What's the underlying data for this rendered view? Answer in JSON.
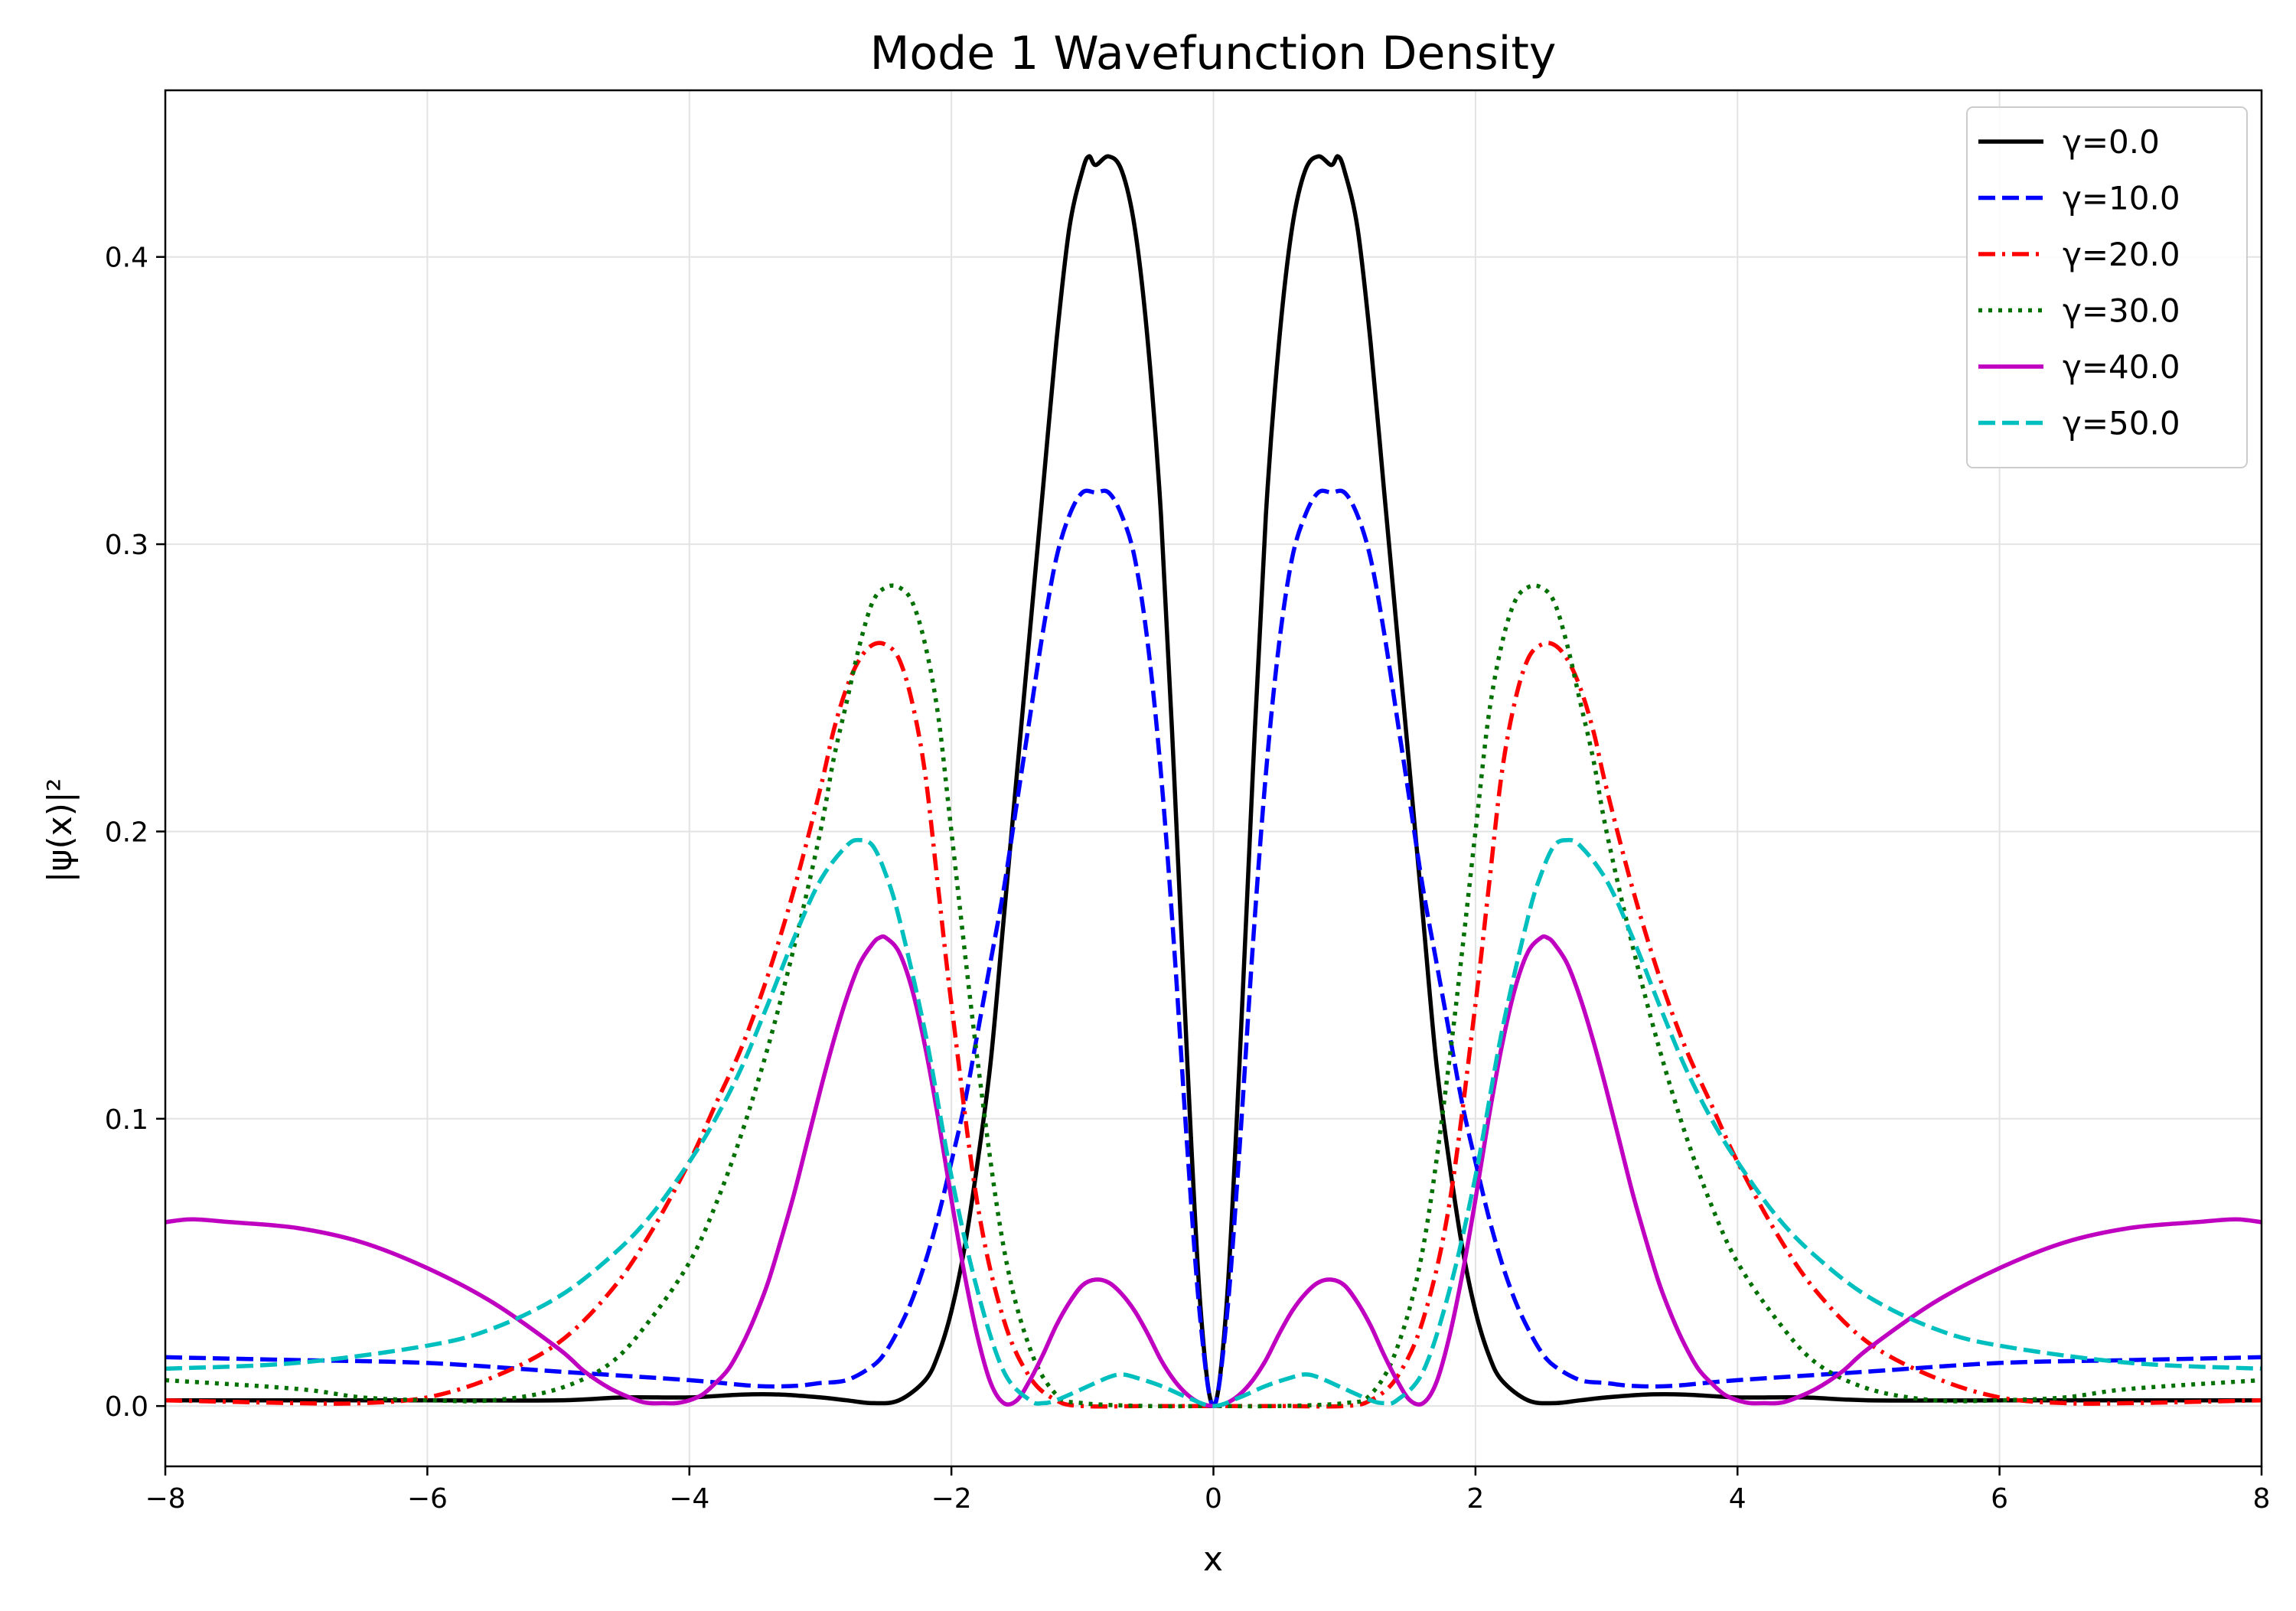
{
  "chart_data": {
    "type": "line",
    "title": "Mode 1 Wavefunction Density",
    "xlabel": "x",
    "ylabel": "|ψ(x)|²",
    "xlim": [
      -8,
      8
    ],
    "ylim": [
      -0.021,
      0.458
    ],
    "xticks": [
      -8,
      -6,
      -4,
      -2,
      0,
      2,
      4,
      6,
      8
    ],
    "xtick_labels": [
      "−8",
      "−6",
      "−4",
      "−2",
      "0",
      "2",
      "4",
      "6",
      "8"
    ],
    "yticks": [
      0.0,
      0.1,
      0.2,
      0.3,
      0.4
    ],
    "ytick_labels": [
      "0.0",
      "0.1",
      "0.2",
      "0.3",
      "0.4"
    ],
    "grid": true,
    "legend_position": "top-right",
    "symmetric_about_zero": true,
    "series": [
      {
        "name": "γ=0.0",
        "color": "#000000",
        "dash": "solid",
        "x": [
          0,
          0.1,
          0.2,
          0.3,
          0.4,
          0.5,
          0.6,
          0.7,
          0.8,
          0.9,
          0.95,
          1.0,
          1.1,
          1.2,
          1.3,
          1.4,
          1.5,
          1.6,
          1.7,
          1.8,
          1.9,
          2.0,
          2.1,
          2.2,
          2.4,
          2.6,
          2.8,
          3.0,
          3.3,
          3.6,
          4.0,
          4.5,
          5.0,
          6.0,
          7.0,
          8.0
        ],
        "y": [
          0,
          0.035,
          0.12,
          0.22,
          0.31,
          0.37,
          0.41,
          0.43,
          0.435,
          0.432,
          0.435,
          0.43,
          0.41,
          0.37,
          0.32,
          0.27,
          0.22,
          0.17,
          0.12,
          0.085,
          0.055,
          0.033,
          0.018,
          0.009,
          0.002,
          0.001,
          0.002,
          0.003,
          0.004,
          0.004,
          0.003,
          0.003,
          0.002,
          0.002,
          0.002,
          0.002
        ]
      },
      {
        "name": "γ=10.0",
        "color": "#0000ff",
        "dash": "dashed",
        "x": [
          0,
          0.1,
          0.2,
          0.3,
          0.4,
          0.5,
          0.6,
          0.7,
          0.8,
          0.9,
          1.0,
          1.1,
          1.2,
          1.3,
          1.4,
          1.5,
          1.6,
          1.7,
          1.8,
          1.9,
          2.0,
          2.1,
          2.2,
          2.3,
          2.4,
          2.5,
          2.6,
          2.8,
          3.0,
          3.2,
          3.5,
          4.0,
          5.0,
          6.0,
          7.0,
          8.0
        ],
        "y": [
          0,
          0.03,
          0.09,
          0.16,
          0.22,
          0.265,
          0.295,
          0.31,
          0.318,
          0.318,
          0.318,
          0.31,
          0.295,
          0.27,
          0.24,
          0.21,
          0.18,
          0.155,
          0.13,
          0.105,
          0.085,
          0.066,
          0.05,
          0.037,
          0.027,
          0.019,
          0.014,
          0.009,
          0.008,
          0.007,
          0.007,
          0.009,
          0.012,
          0.015,
          0.016,
          0.017
        ]
      },
      {
        "name": "γ=20.0",
        "color": "#ff0000",
        "dash": "dashdot",
        "x": [
          0,
          0.5,
          1.0,
          1.2,
          1.4,
          1.6,
          1.8,
          2.0,
          2.1,
          2.2,
          2.3,
          2.4,
          2.5,
          2.6,
          2.7,
          2.8,
          2.9,
          3.0,
          3.2,
          3.4,
          3.6,
          3.8,
          4.0,
          4.3,
          4.6,
          5.0,
          5.5,
          6.0,
          6.5,
          7.0,
          8.0
        ],
        "y": [
          0,
          0,
          0,
          0.002,
          0.01,
          0.03,
          0.07,
          0.14,
          0.18,
          0.22,
          0.245,
          0.26,
          0.265,
          0.265,
          0.26,
          0.25,
          0.235,
          0.215,
          0.18,
          0.15,
          0.125,
          0.105,
          0.085,
          0.06,
          0.04,
          0.022,
          0.01,
          0.003,
          0.001,
          0.001,
          0.002
        ]
      },
      {
        "name": "γ=30.0",
        "color": "#007000",
        "dash": "dotted",
        "x": [
          0,
          0.5,
          1.0,
          1.2,
          1.4,
          1.6,
          1.8,
          2.0,
          2.1,
          2.2,
          2.3,
          2.4,
          2.5,
          2.6,
          2.7,
          2.8,
          2.9,
          3.0,
          3.2,
          3.4,
          3.6,
          3.8,
          4.0,
          4.3,
          4.6,
          5.0,
          5.5,
          6.0,
          6.5,
          7.0,
          8.0
        ],
        "y": [
          0,
          0,
          0.001,
          0.004,
          0.02,
          0.055,
          0.12,
          0.2,
          0.24,
          0.265,
          0.28,
          0.285,
          0.285,
          0.28,
          0.265,
          0.245,
          0.225,
          0.2,
          0.16,
          0.125,
          0.095,
          0.07,
          0.05,
          0.03,
          0.015,
          0.006,
          0.002,
          0.002,
          0.003,
          0.006,
          0.009
        ]
      },
      {
        "name": "γ=40.0",
        "color": "#c000c0",
        "dash": "solid",
        "x": [
          0,
          0.1,
          0.2,
          0.3,
          0.4,
          0.5,
          0.6,
          0.7,
          0.8,
          0.9,
          1.0,
          1.1,
          1.2,
          1.3,
          1.4,
          1.5,
          1.6,
          1.7,
          1.8,
          1.9,
          2.0,
          2.1,
          2.2,
          2.3,
          2.4,
          2.5,
          2.55,
          2.6,
          2.7,
          2.8,
          2.9,
          3.0,
          3.1,
          3.2,
          3.3,
          3.4,
          3.5,
          3.6,
          3.7,
          3.8,
          3.9,
          4.0,
          4.1,
          4.2,
          4.3,
          4.4,
          4.6,
          4.8,
          5.0,
          5.5,
          6.0,
          6.5,
          7.0,
          7.5,
          7.8,
          8.0
        ],
        "y": [
          0,
          0.001,
          0.004,
          0.009,
          0.016,
          0.025,
          0.033,
          0.039,
          0.043,
          0.044,
          0.042,
          0.036,
          0.028,
          0.018,
          0.009,
          0.002,
          0.001,
          0.008,
          0.024,
          0.046,
          0.072,
          0.1,
          0.125,
          0.145,
          0.158,
          0.163,
          0.163,
          0.161,
          0.154,
          0.142,
          0.127,
          0.11,
          0.092,
          0.074,
          0.058,
          0.043,
          0.031,
          0.021,
          0.013,
          0.008,
          0.004,
          0.002,
          0.001,
          0.001,
          0.001,
          0.002,
          0.006,
          0.012,
          0.02,
          0.036,
          0.048,
          0.057,
          0.062,
          0.064,
          0.065,
          0.064
        ]
      },
      {
        "name": "γ=50.0",
        "color": "#00bfbf",
        "dash": "dashed",
        "x": [
          0,
          0.2,
          0.4,
          0.6,
          0.7,
          0.8,
          1.0,
          1.2,
          1.3,
          1.4,
          1.6,
          1.8,
          2.0,
          2.2,
          2.4,
          2.5,
          2.6,
          2.7,
          2.8,
          3.0,
          3.2,
          3.4,
          3.6,
          3.8,
          4.0,
          4.3,
          4.6,
          5.0,
          5.5,
          6.0,
          7.0,
          8.0
        ],
        "y": [
          0,
          0.003,
          0.007,
          0.01,
          0.011,
          0.01,
          0.006,
          0.002,
          0.001,
          0.002,
          0.012,
          0.04,
          0.08,
          0.13,
          0.17,
          0.185,
          0.195,
          0.197,
          0.195,
          0.183,
          0.163,
          0.14,
          0.118,
          0.1,
          0.085,
          0.066,
          0.052,
          0.038,
          0.027,
          0.021,
          0.015,
          0.013
        ]
      }
    ]
  }
}
